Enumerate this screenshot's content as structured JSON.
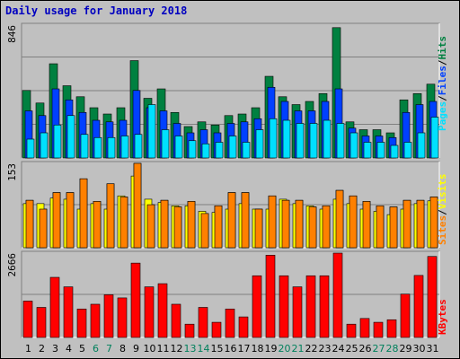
{
  "title": "Daily usage for January 2018",
  "colors": {
    "hits": "#008040",
    "files": "#0040ff",
    "pages": "#00e0ff",
    "visits": "#ffff00",
    "sites": "#ff8000",
    "kbytes": "#ff0000",
    "weekday_label": "#000000",
    "weekend_label": "#00805c",
    "title": "#0000c0"
  },
  "chart_data": [
    {
      "type": "bar",
      "name": "hits-files-pages",
      "max_label": "846",
      "legend": [
        "Pages",
        "/",
        "Files",
        "/",
        "Hits"
      ],
      "ylim": [
        0,
        846
      ],
      "categories": [
        "1",
        "2",
        "3",
        "4",
        "5",
        "6",
        "7",
        "8",
        "9",
        "10",
        "11",
        "12",
        "13",
        "14",
        "15",
        "16",
        "17",
        "18",
        "19",
        "20",
        "21",
        "22",
        "23",
        "24",
        "25",
        "26",
        "27",
        "28",
        "29",
        "30",
        "31"
      ],
      "series": [
        {
          "name": "Hits",
          "values": [
            430,
            350,
            600,
            460,
            390,
            320,
            280,
            320,
            620,
            380,
            440,
            290,
            200,
            230,
            210,
            270,
            280,
            320,
            520,
            390,
            340,
            360,
            410,
            830,
            230,
            180,
            180,
            160,
            370,
            410,
            470
          ]
        },
        {
          "name": "Files",
          "values": [
            300,
            270,
            440,
            370,
            290,
            240,
            230,
            240,
            430,
            320,
            300,
            220,
            160,
            180,
            160,
            220,
            230,
            250,
            450,
            360,
            300,
            300,
            360,
            440,
            190,
            140,
            140,
            130,
            290,
            340,
            360
          ]
        },
        {
          "name": "Pages",
          "values": [
            120,
            160,
            210,
            270,
            150,
            130,
            130,
            140,
            150,
            340,
            180,
            140,
            110,
            90,
            100,
            140,
            100,
            180,
            250,
            240,
            220,
            220,
            240,
            220,
            160,
            100,
            100,
            80,
            100,
            160,
            260
          ]
        }
      ]
    },
    {
      "type": "bar",
      "name": "visits-sites",
      "max_label": "153",
      "legend": [
        "Sites",
        "/",
        "Visits"
      ],
      "ylim": [
        0,
        153
      ],
      "categories": [
        "1",
        "2",
        "3",
        "4",
        "5",
        "6",
        "7",
        "8",
        "9",
        "10",
        "11",
        "12",
        "13",
        "14",
        "15",
        "16",
        "17",
        "18",
        "19",
        "20",
        "21",
        "22",
        "23",
        "24",
        "25",
        "26",
        "27",
        "28",
        "29",
        "30",
        "31"
      ],
      "series": [
        {
          "name": "Visits",
          "values": [
            80,
            80,
            90,
            88,
            70,
            80,
            70,
            94,
            130,
            88,
            82,
            76,
            76,
            66,
            64,
            70,
            80,
            70,
            70,
            88,
            80,
            76,
            70,
            88,
            80,
            70,
            66,
            60,
            70,
            80,
            85
          ]
        },
        {
          "name": "Sites",
          "values": [
            86,
            70,
            100,
            100,
            125,
            84,
            116,
            92,
            153,
            78,
            86,
            74,
            84,
            62,
            76,
            100,
            100,
            70,
            94,
            86,
            86,
            74,
            76,
            104,
            94,
            84,
            76,
            74,
            86,
            86,
            92
          ]
        }
      ]
    },
    {
      "type": "bar",
      "name": "kbytes",
      "max_label": "2666",
      "legend": [
        "KBytes"
      ],
      "ylim": [
        0,
        2666
      ],
      "categories": [
        "1",
        "2",
        "3",
        "4",
        "5",
        "6",
        "7",
        "8",
        "9",
        "10",
        "11",
        "12",
        "13",
        "14",
        "15",
        "16",
        "17",
        "18",
        "19",
        "20",
        "21",
        "22",
        "23",
        "24",
        "25",
        "26",
        "27",
        "28",
        "29",
        "30",
        "31"
      ],
      "series": [
        {
          "name": "KBytes",
          "values": [
            1150,
            950,
            1900,
            1600,
            900,
            1050,
            1350,
            1250,
            2350,
            1600,
            1700,
            1050,
            420,
            950,
            480,
            900,
            650,
            1950,
            2600,
            1950,
            1600,
            1950,
            1950,
            2666,
            420,
            600,
            480,
            560,
            1370,
            1960,
            2560
          ]
        }
      ]
    }
  ],
  "day_labels": [
    "1",
    "2",
    "3",
    "4",
    "5",
    "6",
    "7",
    "8",
    "9",
    "10",
    "11",
    "12",
    "13",
    "14",
    "15",
    "16",
    "17",
    "18",
    "19",
    "20",
    "21",
    "22",
    "23",
    "24",
    "25",
    "26",
    "27",
    "28",
    "29",
    "30",
    "31"
  ],
  "weekend_days": [
    6,
    7,
    13,
    14,
    20,
    21,
    27,
    28
  ]
}
